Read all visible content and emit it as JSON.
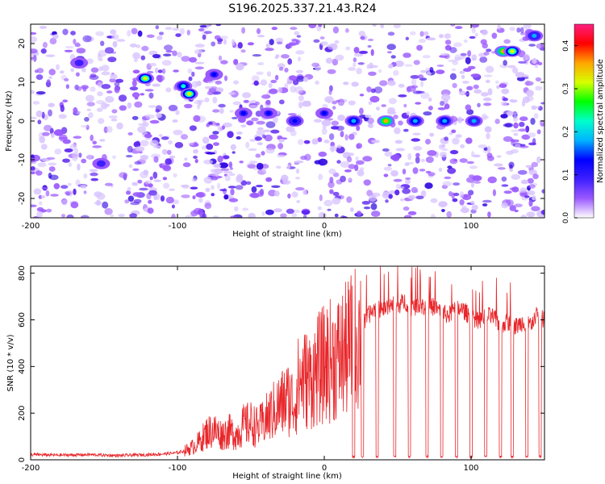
{
  "title": "S196.2025.337.21.43.R24",
  "colors": {
    "signal": "#e8262a",
    "axis": "#000000",
    "background_low": "#ffffff"
  },
  "chart_data": [
    {
      "type": "heatmap",
      "title": "S196.2025.337.21.43.R24",
      "xlabel": "Height of straight line (km)",
      "ylabel": "Frequency (Hz)",
      "xlim": [
        -200,
        150
      ],
      "ylim": [
        -25,
        25
      ],
      "xticks": [
        -200,
        -100,
        0,
        100
      ],
      "xtick_labels": [
        "-200",
        "-100",
        "0",
        "100"
      ],
      "yticks": [
        -20,
        -10,
        0,
        10,
        20
      ],
      "ytick_labels": [
        "-20",
        "-10",
        "0",
        "10",
        "20"
      ],
      "colorbar": {
        "label": "Normalized spectral amplitude",
        "range": [
          0,
          0.45
        ],
        "ticks": [
          0.0,
          0.1,
          0.2,
          0.3,
          0.4
        ],
        "tick_labels": [
          "0.0",
          "0.1",
          "0.2",
          "0.3",
          "0.4"
        ],
        "colormap": [
          "#ffffff",
          "#9b59ff",
          "#3d1fff",
          "#0000ff",
          "#00b4ff",
          "#00ffcc",
          "#00ff00",
          "#d7ff00",
          "#ffa500",
          "#ff0000",
          "#ff2080"
        ]
      },
      "hotspots": [
        {
          "x": -122,
          "y": 11,
          "amplitude": 0.33
        },
        {
          "x": -96,
          "y": 9,
          "amplitude": 0.22
        },
        {
          "x": -92,
          "y": 7,
          "amplitude": 0.3
        },
        {
          "x": -75,
          "y": 12,
          "amplitude": 0.12
        },
        {
          "x": -55,
          "y": 2,
          "amplitude": 0.12
        },
        {
          "x": -38,
          "y": 2,
          "amplitude": 0.14
        },
        {
          "x": -20,
          "y": 0,
          "amplitude": 0.15
        },
        {
          "x": 0,
          "y": 2,
          "amplitude": 0.14
        },
        {
          "x": 20,
          "y": 0,
          "amplitude": 0.18
        },
        {
          "x": 42,
          "y": 0,
          "amplitude": 0.36
        },
        {
          "x": 62,
          "y": 0,
          "amplitude": 0.18
        },
        {
          "x": 82,
          "y": 0,
          "amplitude": 0.18
        },
        {
          "x": 102,
          "y": 0,
          "amplitude": 0.16
        },
        {
          "x": 122,
          "y": 18,
          "amplitude": 0.38
        },
        {
          "x": 128,
          "y": 18,
          "amplitude": 0.3
        },
        {
          "x": 143,
          "y": 22,
          "amplitude": 0.16
        },
        {
          "x": -167,
          "y": 15,
          "amplitude": 0.1
        },
        {
          "x": -152,
          "y": -11,
          "amplitude": 0.1
        }
      ]
    },
    {
      "type": "line",
      "xlabel": "Height of straight line (km)",
      "ylabel": "SNR (10 * v/v)",
      "xlim": [
        -200,
        150
      ],
      "ylim": [
        0,
        830
      ],
      "xticks": [
        -200,
        -100,
        0,
        100
      ],
      "xtick_labels": [
        "-200",
        "-100",
        "0",
        "100"
      ],
      "yticks": [
        0,
        200,
        400,
        600,
        800
      ],
      "ytick_labels": [
        "0",
        "200",
        "400",
        "600",
        "800"
      ],
      "series": [
        {
          "name": "SNR",
          "x": [
            -200,
            -180,
            -160,
            -140,
            -120,
            -110,
            -100,
            -95,
            -90,
            -85,
            -80,
            -75,
            -70,
            -65,
            -60,
            -55,
            -50,
            -45,
            -40,
            -35,
            -30,
            -25,
            -20,
            -18,
            -15,
            -10,
            -5,
            0,
            5,
            10,
            15,
            20,
            25,
            30,
            35,
            40,
            45,
            50,
            55,
            60,
            65,
            70,
            75,
            80,
            85,
            90,
            95,
            100,
            105,
            110,
            115,
            120,
            125,
            130,
            135,
            140,
            145,
            150
          ],
          "values": [
            22,
            20,
            22,
            18,
            22,
            25,
            30,
            40,
            55,
            80,
            120,
            130,
            110,
            125,
            110,
            150,
            160,
            140,
            175,
            210,
            240,
            270,
            250,
            330,
            360,
            350,
            390,
            420,
            440,
            450,
            480,
            520,
            560,
            620,
            650,
            640,
            670,
            660,
            680,
            650,
            670,
            640,
            660,
            630,
            620,
            650,
            640,
            610,
            600,
            620,
            610,
            580,
            590,
            570,
            590,
            580,
            620,
            600
          ],
          "dropouts": [
            20,
            26,
            36,
            48,
            58,
            70,
            80,
            90,
            100,
            110,
            120,
            128,
            138,
            147
          ]
        }
      ]
    }
  ]
}
